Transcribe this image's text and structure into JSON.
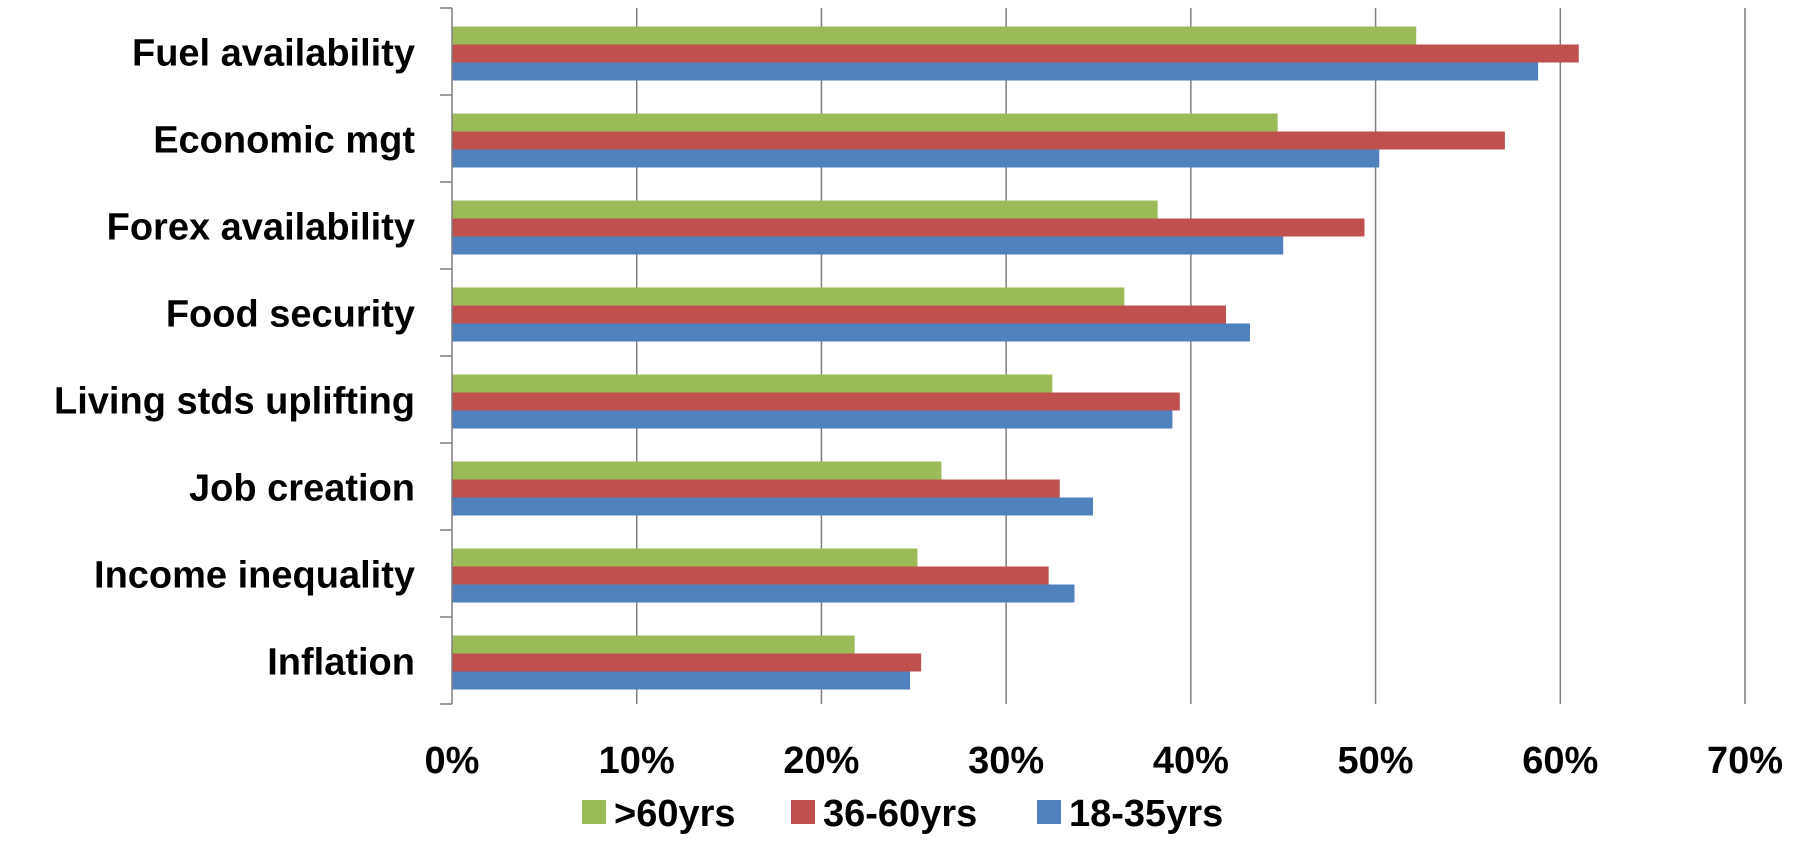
{
  "chart_data": {
    "type": "bar",
    "orientation": "horizontal",
    "categories": [
      "Fuel availability",
      "Economic mgt",
      "Forex availability",
      "Food security",
      "Living stds uplifting",
      "Job creation",
      "Income inequality",
      "Inflation"
    ],
    "series": [
      {
        "name": ">60yrs",
        "color": "#9BBB59",
        "values": [
          52.2,
          44.7,
          38.2,
          36.4,
          32.5,
          26.5,
          25.2,
          21.8
        ]
      },
      {
        "name": "36-60yrs",
        "color": "#C0504D",
        "values": [
          61.0,
          57.0,
          49.4,
          41.9,
          39.4,
          32.9,
          32.3,
          25.4
        ]
      },
      {
        "name": "18-35yrs",
        "color": "#4F81BD",
        "values": [
          58.8,
          50.2,
          45.0,
          43.2,
          39.0,
          34.7,
          33.7,
          24.8
        ]
      }
    ],
    "x_ticks": [
      "0%",
      "10%",
      "20%",
      "30%",
      "40%",
      "50%",
      "60%",
      "70%"
    ],
    "xlim": [
      0,
      70
    ],
    "x_unit": "%",
    "grid": true,
    "legend_position": "bottom",
    "title": "",
    "xlabel": "",
    "ylabel": ""
  }
}
